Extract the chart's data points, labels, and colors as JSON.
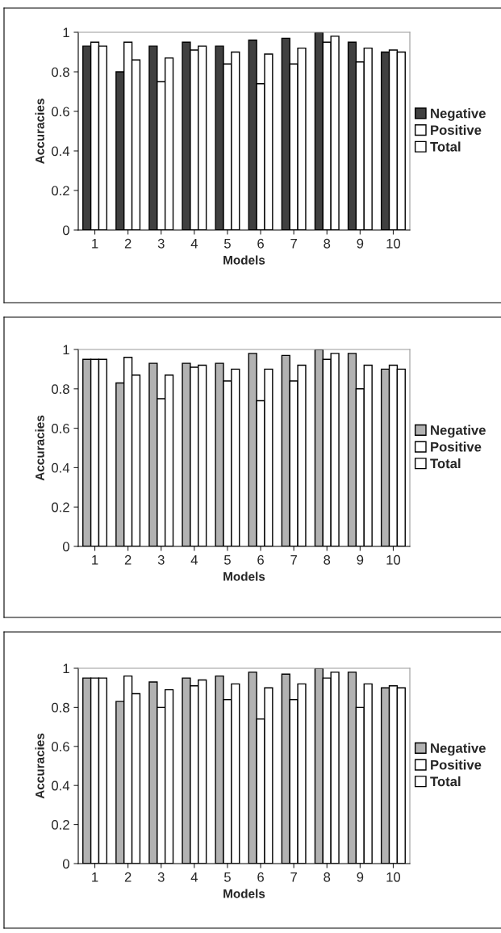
{
  "chart_data": [
    {
      "type": "bar",
      "xlabel": "Models",
      "ylabel": "Accuracies",
      "categories": [
        "1",
        "2",
        "3",
        "4",
        "5",
        "6",
        "7",
        "8",
        "9",
        "10"
      ],
      "ylim": [
        0,
        1
      ],
      "yticks": [
        0,
        0.2,
        0.4,
        0.6,
        0.8,
        1
      ],
      "legend": "right",
      "grid": false,
      "series": [
        {
          "name": "Negative",
          "color": "#404040",
          "values": [
            0.93,
            0.8,
            0.93,
            0.95,
            0.93,
            0.96,
            0.97,
            1.0,
            0.95,
            0.9
          ]
        },
        {
          "name": "Positive",
          "color": "#ffffff",
          "values": [
            0.95,
            0.95,
            0.75,
            0.91,
            0.84,
            0.74,
            0.84,
            0.95,
            0.85,
            0.91
          ]
        },
        {
          "name": "Total",
          "color": "#ffffff",
          "values": [
            0.93,
            0.86,
            0.87,
            0.93,
            0.9,
            0.89,
            0.92,
            0.98,
            0.92,
            0.9
          ]
        }
      ]
    },
    {
      "type": "bar",
      "xlabel": "Models",
      "ylabel": "Accuracies",
      "categories": [
        "1",
        "2",
        "3",
        "4",
        "5",
        "6",
        "7",
        "8",
        "9",
        "10"
      ],
      "ylim": [
        0,
        1
      ],
      "yticks": [
        0,
        0.2,
        0.4,
        0.6,
        0.8,
        1
      ],
      "legend": "right",
      "grid": false,
      "series": [
        {
          "name": "Negative",
          "color": "#b2b2b2",
          "values": [
            0.95,
            0.83,
            0.93,
            0.93,
            0.93,
            0.98,
            0.97,
            1.0,
            0.98,
            0.9
          ]
        },
        {
          "name": "Positive",
          "color": "#ffffff",
          "values": [
            0.95,
            0.96,
            0.75,
            0.91,
            0.84,
            0.74,
            0.84,
            0.95,
            0.8,
            0.92
          ]
        },
        {
          "name": "Total",
          "color": "#ffffff",
          "values": [
            0.95,
            0.87,
            0.87,
            0.92,
            0.9,
            0.9,
            0.92,
            0.98,
            0.92,
            0.9
          ]
        }
      ]
    },
    {
      "type": "bar",
      "xlabel": "Models",
      "ylabel": "Accuracies",
      "categories": [
        "1",
        "2",
        "3",
        "4",
        "5",
        "6",
        "7",
        "8",
        "9",
        "10"
      ],
      "ylim": [
        0,
        1
      ],
      "yticks": [
        0,
        0.2,
        0.4,
        0.6,
        0.8,
        1
      ],
      "legend": "right",
      "grid": false,
      "series": [
        {
          "name": "Negative",
          "color": "#b2b2b2",
          "values": [
            0.95,
            0.83,
            0.93,
            0.95,
            0.96,
            0.98,
            0.97,
            1.0,
            0.98,
            0.9
          ]
        },
        {
          "name": "Positive",
          "color": "#ffffff",
          "values": [
            0.95,
            0.96,
            0.8,
            0.91,
            0.84,
            0.74,
            0.84,
            0.95,
            0.8,
            0.91
          ]
        },
        {
          "name": "Total",
          "color": "#ffffff",
          "values": [
            0.95,
            0.87,
            0.89,
            0.94,
            0.92,
            0.9,
            0.92,
            0.98,
            0.92,
            0.9
          ]
        }
      ]
    }
  ]
}
